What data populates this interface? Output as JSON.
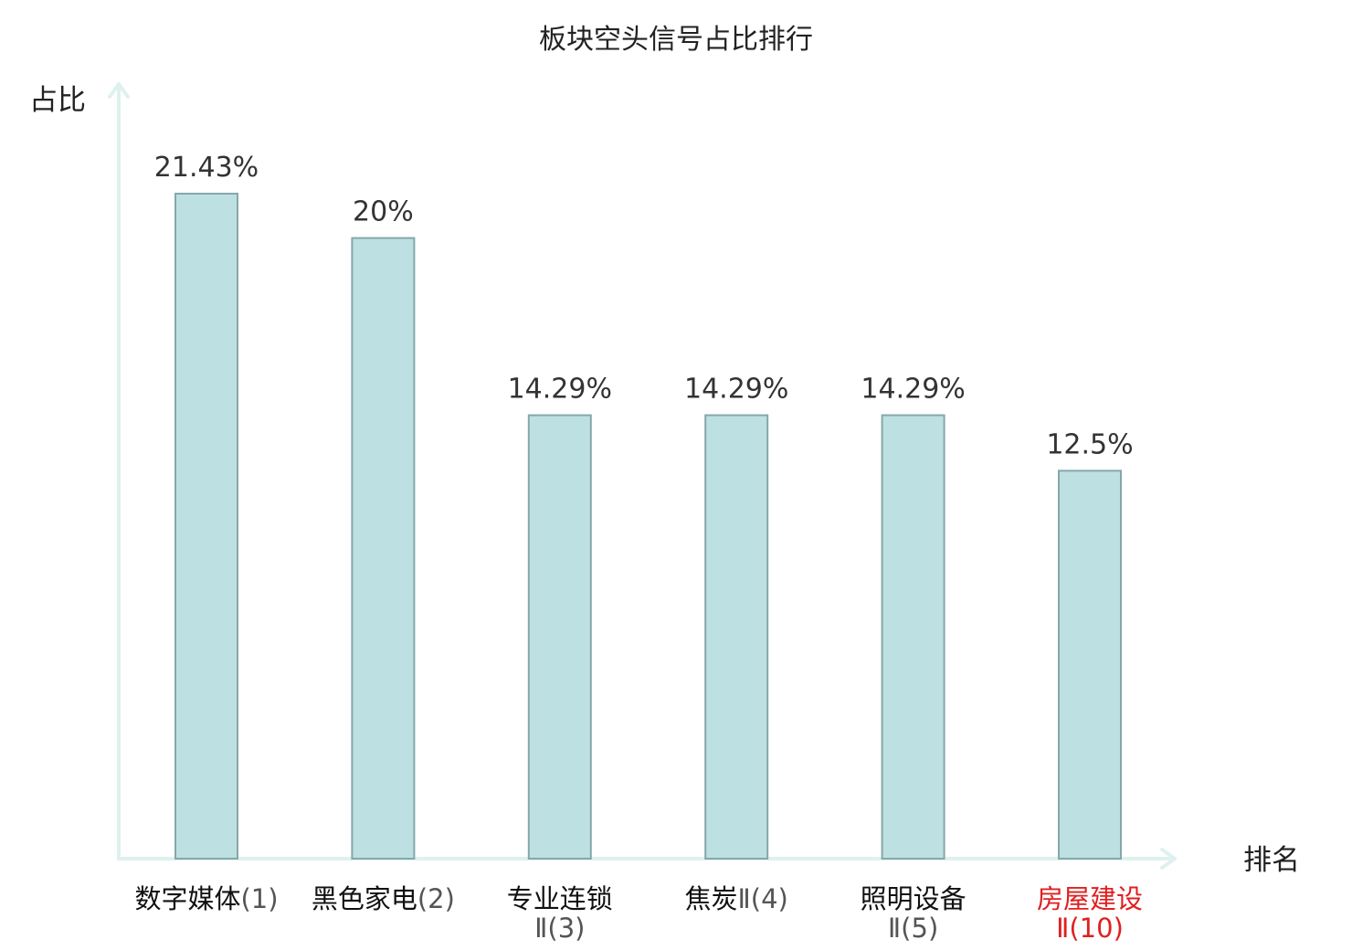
{
  "colors": {
    "axis": "#dff1ee",
    "bar_fill": "#bde0e3",
    "bar_stroke": "#86a7aa",
    "highlight_text": "#e02020"
  },
  "chart_data": {
    "type": "bar",
    "title": "板块空头信号占比排行",
    "xlabel": "排名",
    "ylabel": "占比",
    "ylim": [
      0,
      25
    ],
    "grid": false,
    "categories": [
      {
        "text": "数字媒体(1)",
        "line1_cn": "数字媒体",
        "line1_suffix": "(1)",
        "line2": "",
        "highlight": false
      },
      {
        "text": "黑色家电(2)",
        "line1_cn": "黑色家电",
        "line1_suffix": "(2)",
        "line2": "",
        "highlight": false
      },
      {
        "text": "专业连锁Ⅱ(3)",
        "line1_cn": "专业连锁",
        "line1_suffix": "",
        "line2": "Ⅱ(3)",
        "highlight": false
      },
      {
        "text": "焦炭Ⅱ(4)",
        "line1_cn": "焦炭",
        "line1_suffix": "Ⅱ(4)",
        "line2": "",
        "highlight": false
      },
      {
        "text": "照明设备Ⅱ(5)",
        "line1_cn": "照明设备",
        "line1_suffix": "",
        "line2": "Ⅱ(5)",
        "highlight": false
      },
      {
        "text": "房屋建设Ⅱ(10)",
        "line1_cn": "房屋建设",
        "line1_suffix": "",
        "line2": "Ⅱ(10)",
        "highlight": true
      }
    ],
    "values": [
      21.43,
      20,
      14.29,
      14.29,
      14.29,
      12.5
    ],
    "value_labels": [
      "21.43%",
      "20%",
      "14.29%",
      "14.29%",
      "14.29%",
      "12.5%"
    ]
  }
}
